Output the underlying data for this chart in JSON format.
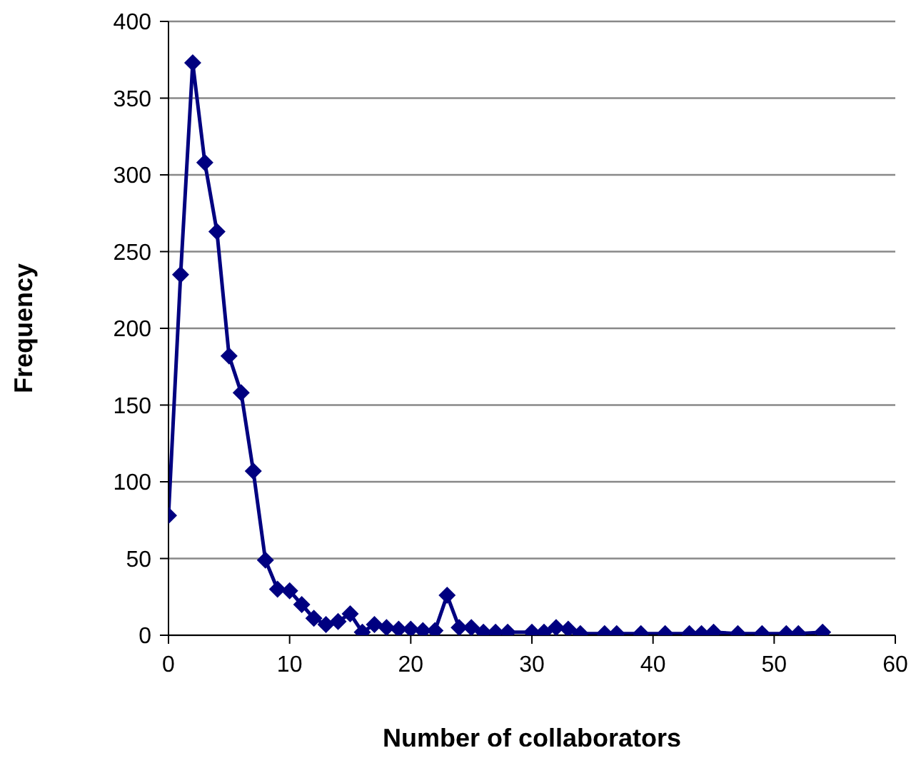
{
  "chart_data": {
    "type": "line",
    "xlabel": "Number of collaborators",
    "ylabel": "Frequency",
    "x": [
      0,
      1,
      2,
      3,
      4,
      5,
      6,
      7,
      8,
      9,
      10,
      11,
      12,
      13,
      14,
      15,
      16,
      17,
      18,
      19,
      20,
      21,
      22,
      23,
      24,
      25,
      26,
      27,
      28,
      30,
      31,
      32,
      33,
      34,
      36,
      37,
      39,
      41,
      43,
      44,
      45,
      47,
      49,
      51,
      52,
      54
    ],
    "series": [
      {
        "color": "#000080",
        "values": [
          78,
          235,
          373,
          308,
          263,
          182,
          158,
          107,
          49,
          30,
          29,
          20,
          11,
          7,
          9,
          14,
          2,
          7,
          5,
          4,
          4,
          3,
          3,
          26,
          5,
          5,
          2,
          2,
          2,
          2,
          2,
          5,
          4,
          1,
          1,
          1,
          1,
          1,
          1,
          1,
          2,
          1,
          1,
          1,
          1,
          2
        ]
      }
    ],
    "xlim": [
      0,
      60
    ],
    "xticks": [
      0,
      10,
      20,
      30,
      40,
      50,
      60
    ],
    "ylim": [
      0,
      400
    ],
    "yticks": [
      0,
      50,
      100,
      150,
      200,
      250,
      300,
      350,
      400
    ],
    "grid": "y",
    "legend": false,
    "marker": "diamond",
    "line_style": "solid"
  }
}
